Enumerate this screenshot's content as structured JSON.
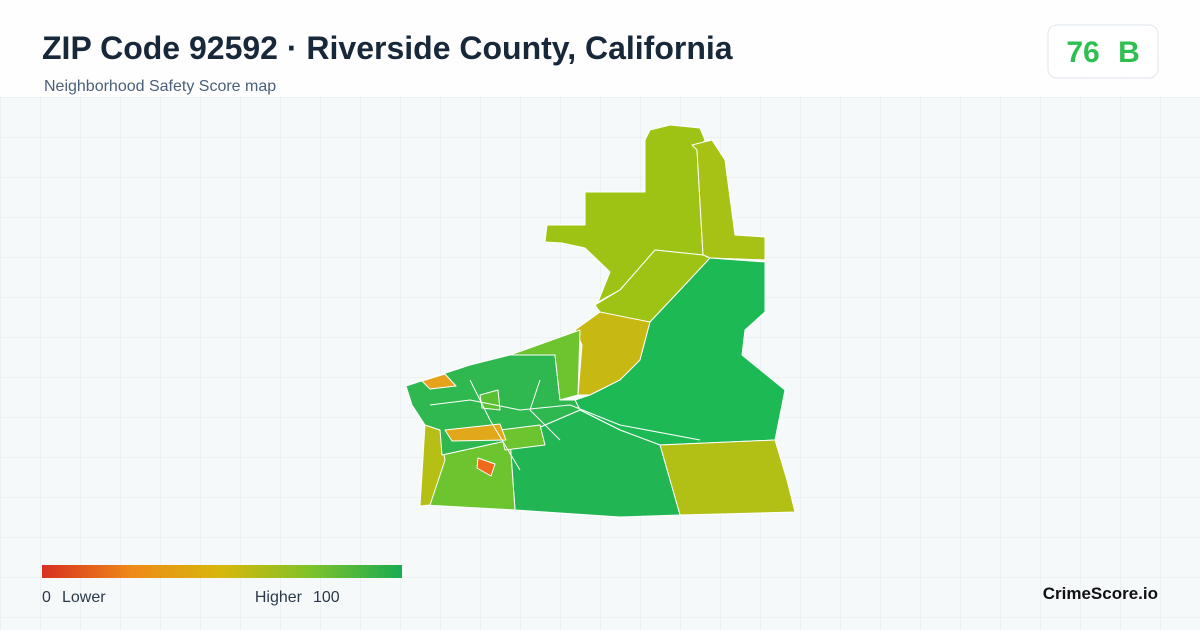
{
  "header": {
    "title": "ZIP Code 92592 · Riverside County, California",
    "subtitle": "Neighborhood Safety Score map"
  },
  "score": {
    "value": 76,
    "grade": "B"
  },
  "legend": {
    "min": 0,
    "min_label": "Lower",
    "max_label": "Higher",
    "max": 100
  },
  "brand": "CrimeScore.io"
}
